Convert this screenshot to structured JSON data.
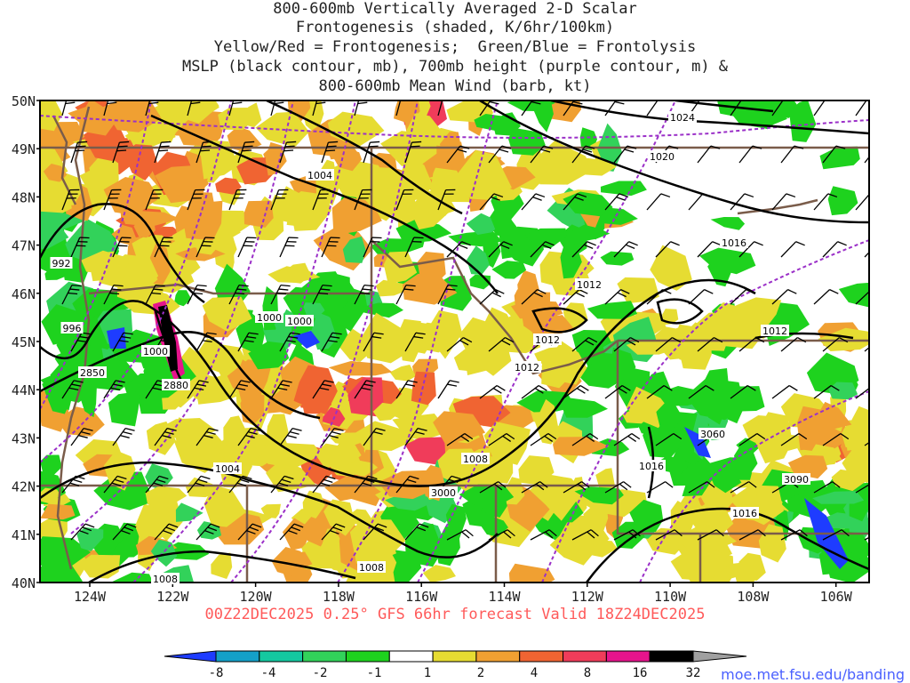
{
  "title_lines": [
    "800-600mb Vertically Averaged 2-D Scalar",
    "Frontogenesis (shaded, K/6hr/100km)",
    "Yellow/Red = Frontogenesis;  Green/Blue = Frontolysis",
    "MSLP (black contour, mb), 700mb height (purple contour, m) &",
    "800-600mb Mean Wind (barb, kt)"
  ],
  "lat_labels": [
    "50N",
    "49N",
    "48N",
    "47N",
    "46N",
    "45N",
    "44N",
    "43N",
    "42N",
    "41N",
    "40N"
  ],
  "lon_labels": [
    "124W",
    "122W",
    "120W",
    "118W",
    "116W",
    "114W",
    "112W",
    "110W",
    "108W",
    "106W"
  ],
  "isobar_labels": [
    "1024",
    "1020",
    "1016",
    "1012",
    "1012",
    "1012",
    "1012",
    "1008",
    "1008",
    "1008",
    "1004",
    "1004",
    "1000",
    "1000",
    "1000",
    "996",
    "992",
    "1016",
    "1016"
  ],
  "height_labels": [
    "2850",
    "2880",
    "3000",
    "3060",
    "3090"
  ],
  "valid_text": "00Z22DEC2025 0.25° GFS 66hr forecast Valid 18Z24DEC2025",
  "colorbar": {
    "ticks": [
      "-8",
      "-4",
      "-2",
      "-1",
      "1",
      "2",
      "4",
      "8",
      "16",
      "32"
    ],
    "colors": [
      "#1e3cff",
      "#14a0c8",
      "#14c8a0",
      "#32d25a",
      "#1ed21e",
      "#ffffff",
      "#e6dc32",
      "#f0a032",
      "#f06432",
      "#f03c5a",
      "#e6148c",
      "#000000",
      "#a0a0a0"
    ]
  },
  "credit": "moe.met.fsu.edu/banding"
}
